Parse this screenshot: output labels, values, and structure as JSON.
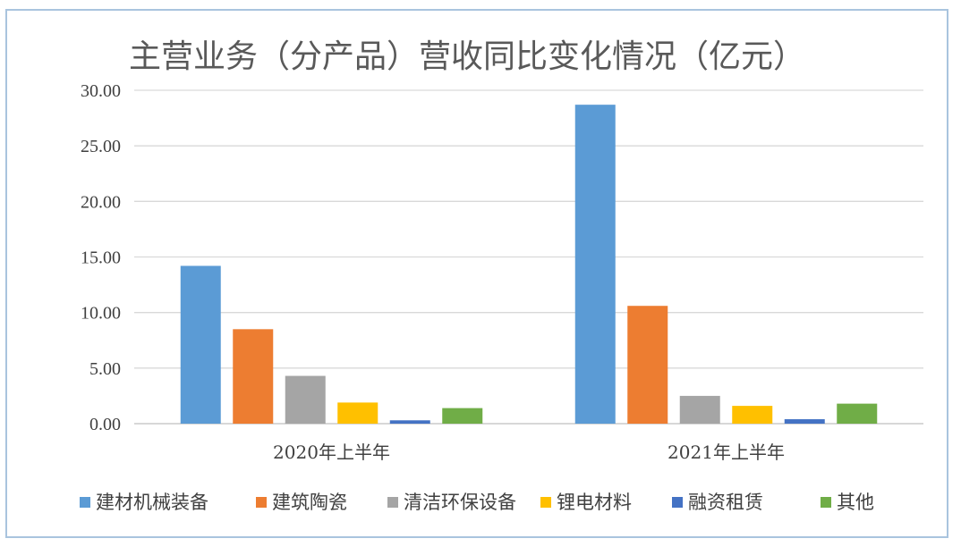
{
  "chart_data": {
    "type": "bar",
    "title": "主营业务（分产品）营收同比变化情况（亿元）",
    "categories": [
      "2020年上半年",
      "2021年上半年"
    ],
    "ylim": [
      0,
      30
    ],
    "yticks": [
      "0.00",
      "5.00",
      "10.00",
      "15.00",
      "20.00",
      "25.00",
      "30.00"
    ],
    "grid": true,
    "legend_position": "bottom",
    "series": [
      {
        "name": "建材机械装备",
        "color": "#5b9bd5",
        "values": [
          14.2,
          28.7
        ]
      },
      {
        "name": "建筑陶瓷",
        "color": "#ed7d31",
        "values": [
          8.5,
          10.6
        ]
      },
      {
        "name": "清洁环保设备",
        "color": "#a5a5a5",
        "values": [
          4.3,
          2.5
        ]
      },
      {
        "name": "锂电材料",
        "color": "#ffc000",
        "values": [
          1.9,
          1.6
        ]
      },
      {
        "name": "融资租赁",
        "color": "#4472c4",
        "values": [
          0.3,
          0.4
        ]
      },
      {
        "name": "其他",
        "color": "#70ad47",
        "values": [
          1.4,
          1.8
        ]
      }
    ]
  }
}
